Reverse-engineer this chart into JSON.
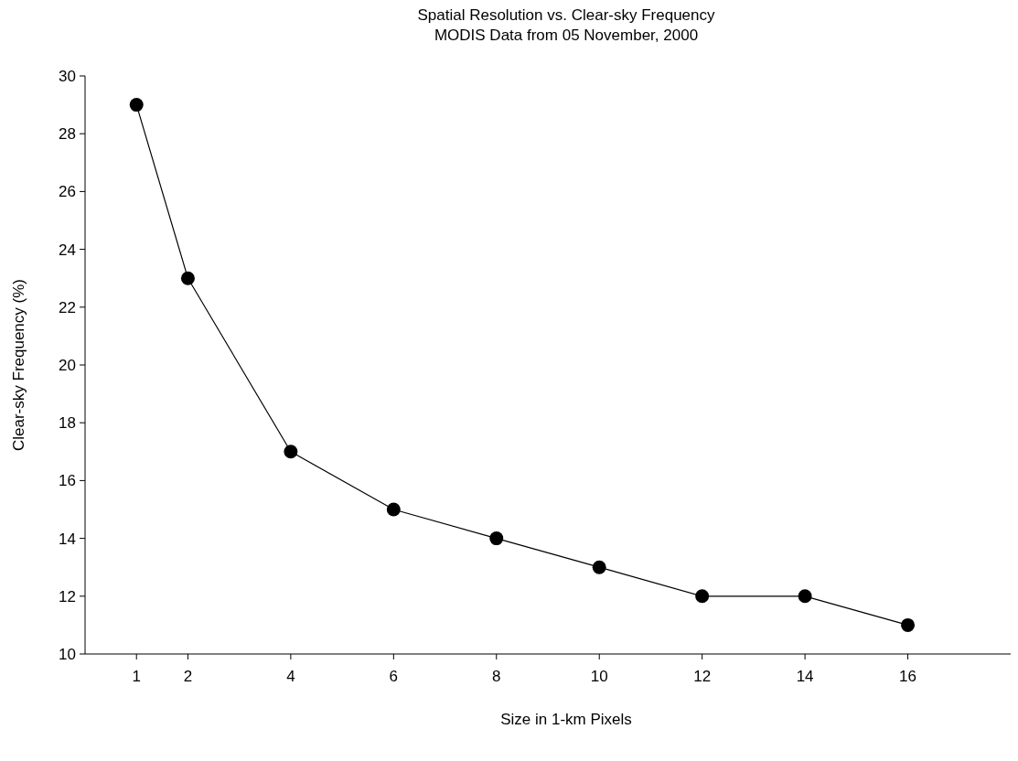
{
  "chart_data": {
    "type": "line",
    "title": "Spatial Resolution vs. Clear-sky Frequency",
    "subtitle": "MODIS Data from 05 November, 2000",
    "xlabel": "Size in 1-km Pixels",
    "ylabel": "Clear-sky Frequency (%)",
    "x": [
      1,
      2,
      4,
      6,
      8,
      10,
      12,
      14,
      16
    ],
    "series": [
      {
        "color": "#000000",
        "values": [
          29,
          23,
          17,
          15,
          14,
          13,
          12,
          12,
          11
        ]
      }
    ],
    "xlim": [
      0,
      18
    ],
    "xticks": [
      1,
      2,
      4,
      6,
      8,
      10,
      12,
      14,
      16
    ],
    "ylim": [
      10,
      30
    ],
    "yticks": [
      10,
      12,
      14,
      16,
      18,
      20,
      22,
      24,
      26,
      28,
      30
    ],
    "grid": false,
    "marker": "circle",
    "line_style": "solid"
  }
}
